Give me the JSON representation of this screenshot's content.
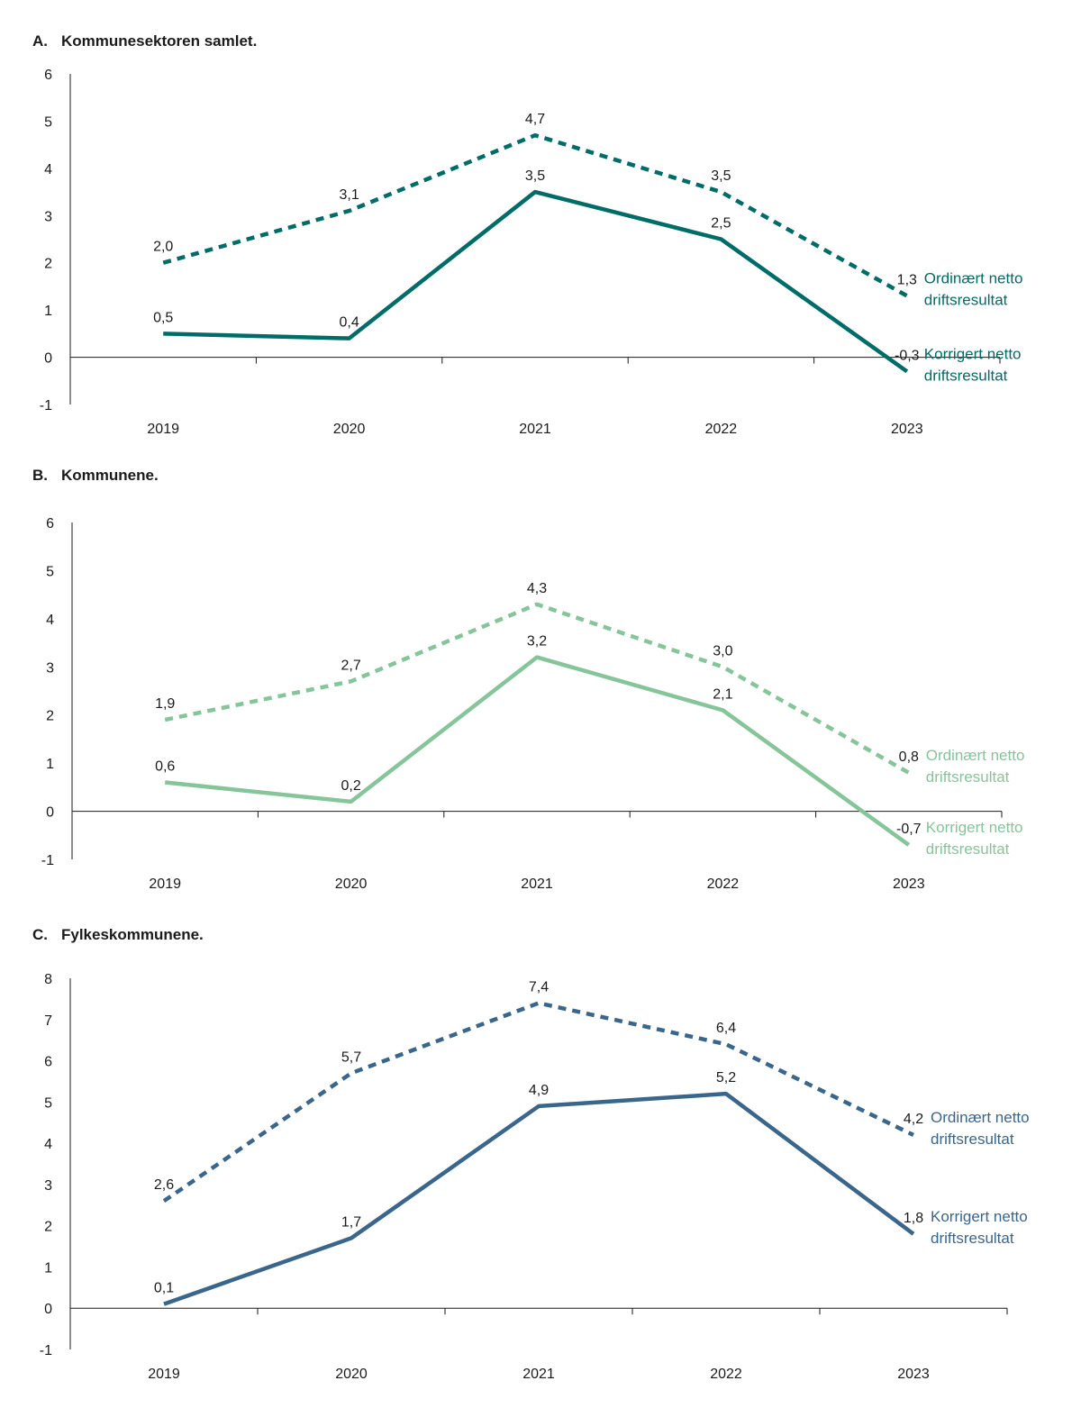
{
  "chart_data": [
    {
      "type": "line",
      "panel_label": "A.",
      "title": "Kommunesektoren samlet.",
      "categories": [
        "2019",
        "2020",
        "2021",
        "2022",
        "2023"
      ],
      "ylim": [
        -1,
        6
      ],
      "yticks": [
        -1,
        0,
        1,
        2,
        3,
        4,
        5,
        6
      ],
      "color": "#006c68",
      "series": [
        {
          "name": "Ordinært netto driftsresultat",
          "name_lines": [
            "Ordinært netto",
            "driftsresultat"
          ],
          "style": "dashed",
          "values": [
            2.0,
            3.1,
            4.7,
            3.5,
            1.3
          ],
          "labels": [
            "2,0",
            "3,1",
            "4,7",
            "3,5",
            "1,3"
          ]
        },
        {
          "name": "Korrigert netto driftsresultat",
          "name_lines": [
            "Korrigert netto",
            "driftsresultat"
          ],
          "style": "solid",
          "values": [
            0.5,
            0.4,
            3.5,
            2.5,
            -0.3
          ],
          "labels": [
            "0,5",
            "0,4",
            "3,5",
            "2,5",
            "-0,3"
          ]
        }
      ]
    },
    {
      "type": "line",
      "panel_label": "B.",
      "title": "Kommunene.",
      "categories": [
        "2019",
        "2020",
        "2021",
        "2022",
        "2023"
      ],
      "ylim": [
        -1,
        6
      ],
      "yticks": [
        -1,
        0,
        1,
        2,
        3,
        4,
        5,
        6
      ],
      "color": "#86c49a",
      "series": [
        {
          "name": "Ordinært netto driftsresultat",
          "name_lines": [
            "Ordinært netto",
            "driftsresultat"
          ],
          "style": "dashed",
          "values": [
            1.9,
            2.7,
            4.3,
            3.0,
            0.8
          ],
          "labels": [
            "1,9",
            "2,7",
            "4,3",
            "3,0",
            "0,8"
          ]
        },
        {
          "name": "Korrigert netto driftsresultat",
          "name_lines": [
            "Korrigert netto",
            "driftsresultat"
          ],
          "style": "solid",
          "values": [
            0.6,
            0.2,
            3.2,
            2.1,
            -0.7
          ],
          "labels": [
            "0,6",
            "0,2",
            "3,2",
            "2,1",
            "-0,7"
          ]
        }
      ]
    },
    {
      "type": "line",
      "panel_label": "C.",
      "title": "Fylkeskommunene.",
      "categories": [
        "2019",
        "2020",
        "2021",
        "2022",
        "2023"
      ],
      "ylim": [
        -1,
        8
      ],
      "yticks": [
        -1,
        0,
        1,
        2,
        3,
        4,
        5,
        6,
        7,
        8
      ],
      "color": "#3b668c",
      "series": [
        {
          "name": "Ordinært netto driftsresultat",
          "name_lines": [
            "Ordinært netto",
            "driftsresultat"
          ],
          "style": "dashed",
          "values": [
            2.6,
            5.7,
            7.4,
            6.4,
            4.2
          ],
          "labels": [
            "2,6",
            "5,7",
            "7,4",
            "6,4",
            "4,2"
          ]
        },
        {
          "name": "Korrigert netto driftsresultat",
          "name_lines": [
            "Korrigert netto",
            "driftsresultat"
          ],
          "style": "solid",
          "values": [
            0.1,
            1.7,
            4.9,
            5.2,
            1.8
          ],
          "labels": [
            "0,1",
            "1,7",
            "4,9",
            "5,2",
            "1,8"
          ]
        }
      ]
    }
  ]
}
